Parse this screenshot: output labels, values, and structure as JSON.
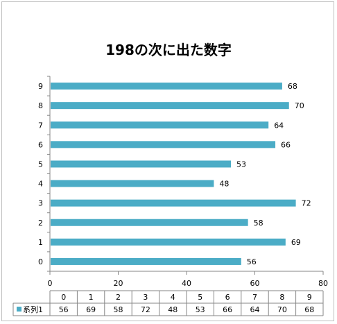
{
  "chart_data": {
    "type": "bar",
    "orientation": "horizontal",
    "title": "198の次に出た数字",
    "categories": [
      "0",
      "1",
      "2",
      "3",
      "4",
      "5",
      "6",
      "7",
      "8",
      "9"
    ],
    "series": [
      {
        "name": "系列1",
        "values": [
          56,
          69,
          58,
          72,
          48,
          53,
          66,
          64,
          70,
          68
        ],
        "color": "#4bacc6"
      }
    ],
    "xlim": [
      0,
      80
    ],
    "xticks": [
      0,
      20,
      40,
      60,
      80
    ],
    "data_labels": true,
    "grid": false,
    "data_table": true,
    "legend": "data-table"
  }
}
